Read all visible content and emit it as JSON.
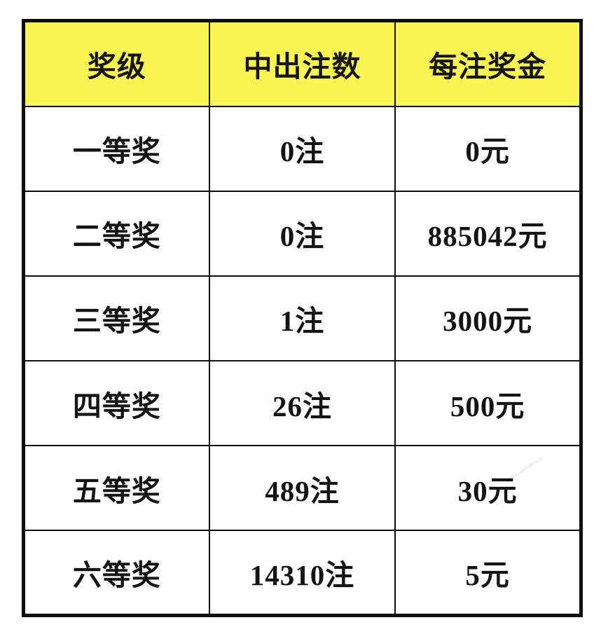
{
  "table": {
    "headers": [
      "奖级",
      "中出注数",
      "每注奖金"
    ],
    "rows": [
      [
        "一等奖",
        "0注",
        "0元"
      ],
      [
        "二等奖",
        "0注",
        "885042元"
      ],
      [
        "三等奖",
        "1注",
        "3000元"
      ],
      [
        "四等奖",
        "26注",
        "500元"
      ],
      [
        "五等奖",
        "489注",
        "30元"
      ],
      [
        "六等奖",
        "14310注",
        "5元"
      ]
    ]
  },
  "colors": {
    "header_bg": "#fbf553",
    "border": "#0f0f0f",
    "text": "#141414",
    "page_bg": "#ffffff"
  },
  "chart_data": {
    "type": "table",
    "title": "",
    "columns": [
      "奖级",
      "中出注数",
      "每注奖金"
    ],
    "rows": [
      [
        "一等奖",
        "0注",
        "0元"
      ],
      [
        "二等奖",
        "0注",
        "885042元"
      ],
      [
        "三等奖",
        "1注",
        "3000元"
      ],
      [
        "四等奖",
        "26注",
        "500元"
      ],
      [
        "五等奖",
        "489注",
        "30元"
      ],
      [
        "六等奖",
        "14310注",
        "5元"
      ]
    ],
    "prize_levels": [
      "一等奖",
      "二等奖",
      "三等奖",
      "四等奖",
      "五等奖",
      "六等奖"
    ],
    "winning_bets": [
      0,
      0,
      1,
      26,
      489,
      14310
    ],
    "prize_per_bet_yuan": [
      0,
      885042,
      3000,
      500,
      30,
      5
    ]
  }
}
